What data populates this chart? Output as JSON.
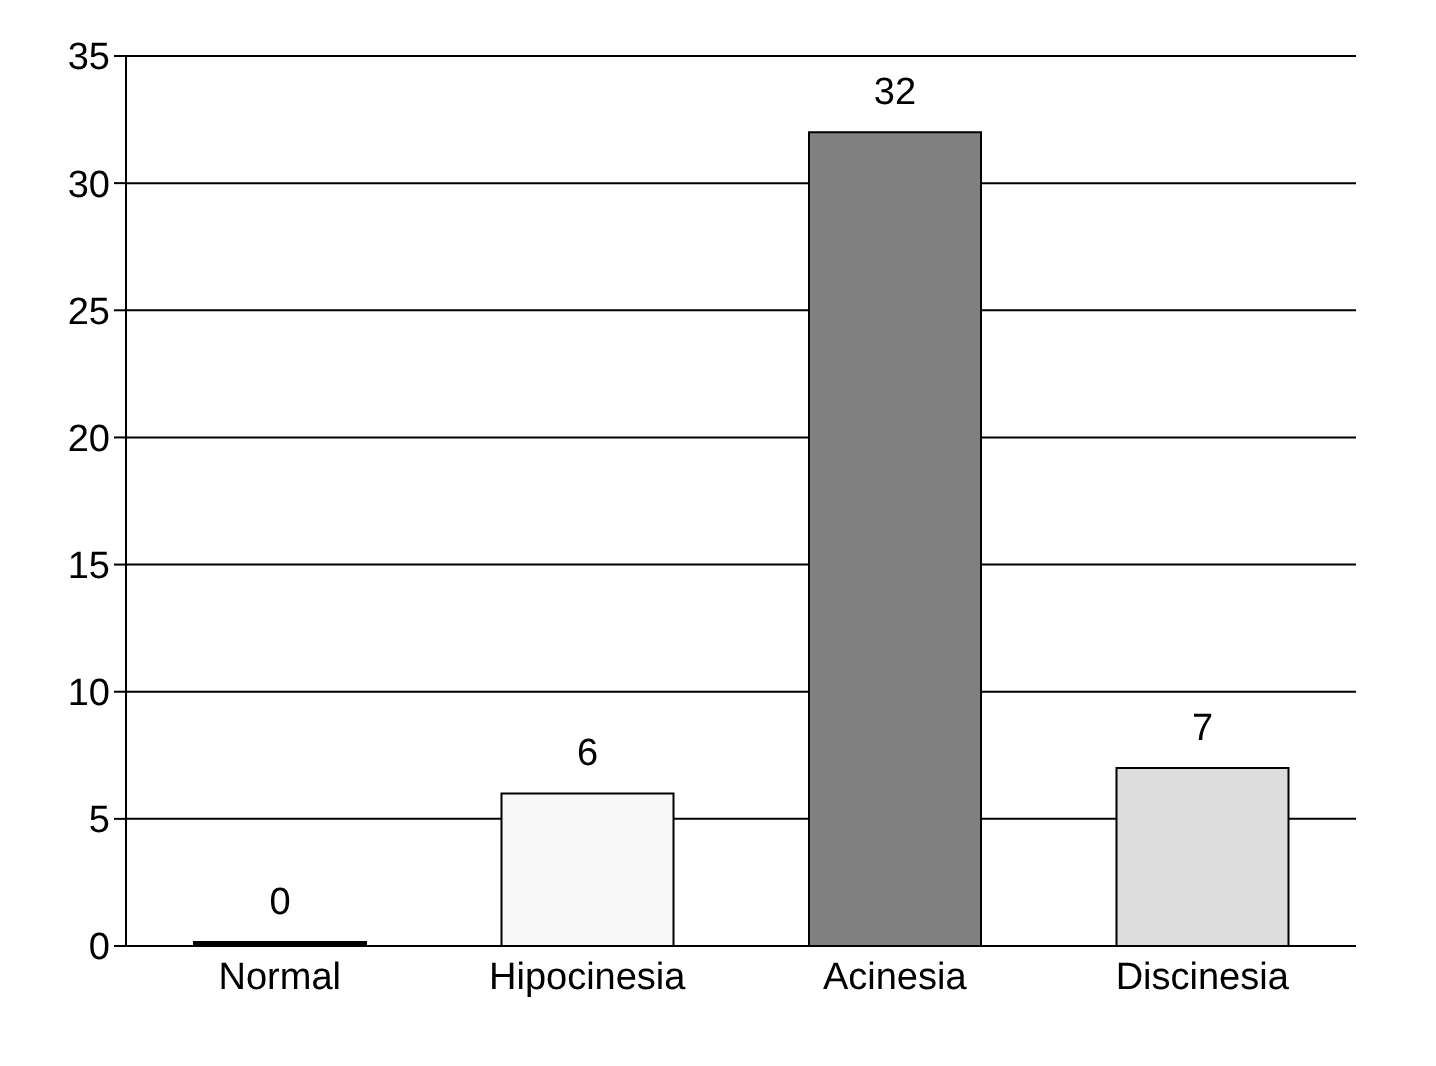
{
  "chart_data": {
    "type": "bar",
    "categories": [
      "Normal",
      "Hipocinesia",
      "Acinesia",
      "Discinesia"
    ],
    "values": [
      0,
      6,
      32,
      7
    ],
    "colors": [
      "#000000",
      "#f8f8f8",
      "#808080",
      "#dddddd"
    ],
    "ylim": [
      0,
      35
    ],
    "yticks": [
      0,
      5,
      10,
      15,
      20,
      25,
      30,
      35
    ],
    "grid": "y",
    "data_labels": true
  }
}
